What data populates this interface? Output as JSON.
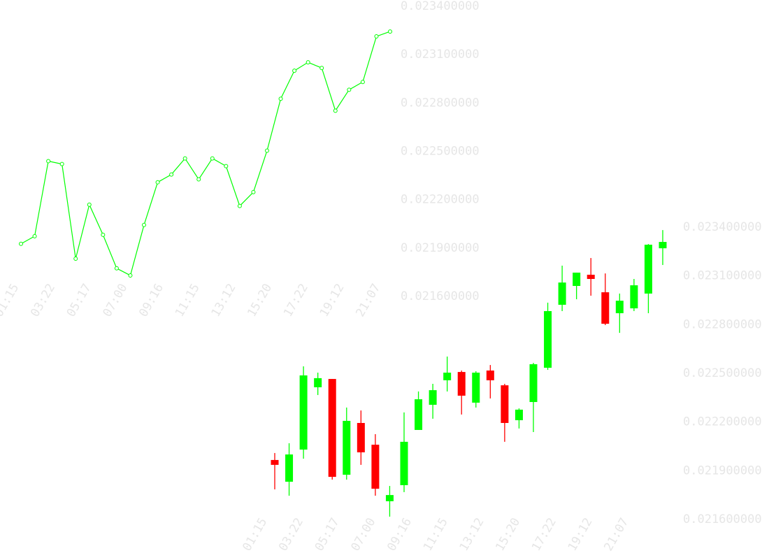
{
  "colors": {
    "line": "#00ff00",
    "up": "#00ff00",
    "down": "#ff0000",
    "labels": "#e6e6e6",
    "background": "#ffffff"
  },
  "chart_data": [
    {
      "type": "line",
      "marker": "circle",
      "ylim": [
        0.0216,
        0.0234
      ],
      "yticks": [
        "0.023400000",
        "0.023100000",
        "0.022800000",
        "0.022500000",
        "0.022200000",
        "0.021900000",
        "0.021600000"
      ],
      "ytick_values": [
        0.0234,
        0.0231,
        0.0228,
        0.0225,
        0.0222,
        0.0219,
        0.0216
      ],
      "xticks": [
        "01:15",
        "03:22",
        "05:17",
        "07:00",
        "09:16",
        "11:15",
        "13:12",
        "15:20",
        "17:22",
        "19:12",
        "21:07"
      ],
      "grid": false,
      "values": [
        0.021922,
        0.021969,
        0.022435,
        0.022417,
        0.02183,
        0.022165,
        0.021978,
        0.02177,
        0.021726,
        0.022039,
        0.022304,
        0.022352,
        0.022452,
        0.022322,
        0.022452,
        0.022404,
        0.022157,
        0.022243,
        0.0225,
        0.022822,
        0.022996,
        0.023048,
        0.023013,
        0.022748,
        0.022878,
        0.022926,
        0.023209,
        0.023239
      ]
    },
    {
      "type": "candlestick",
      "ylim": [
        0.0216,
        0.0234
      ],
      "yticks": [
        "0.023400000",
        "0.023100000",
        "0.022800000",
        "0.022500000",
        "0.022200000",
        "0.021900000",
        "0.021600000"
      ],
      "ytick_values": [
        0.0234,
        0.0231,
        0.0228,
        0.0225,
        0.0222,
        0.0219,
        0.0216
      ],
      "xticks": [
        "01:15",
        "03:22",
        "05:17",
        "07:00",
        "09:16",
        "11:15",
        "13:12",
        "15:20",
        "17:22",
        "19:12",
        "21:07"
      ],
      "grid": false,
      "candles": [
        {
          "o": 0.021962,
          "h": 0.022005,
          "l": 0.021781,
          "c": 0.021932
        },
        {
          "o": 0.021828,
          "h": 0.022065,
          "l": 0.021742,
          "c": 0.021996
        },
        {
          "o": 0.022026,
          "h": 0.022539,
          "l": 0.02197,
          "c": 0.022483
        },
        {
          "o": 0.02241,
          "h": 0.0225,
          "l": 0.022362,
          "c": 0.022466
        },
        {
          "o": 0.022461,
          "h": 0.022461,
          "l": 0.021841,
          "c": 0.021858
        },
        {
          "o": 0.021871,
          "h": 0.022285,
          "l": 0.021841,
          "c": 0.022203
        },
        {
          "o": 0.02219,
          "h": 0.022267,
          "l": 0.021932,
          "c": 0.022009
        },
        {
          "o": 0.022056,
          "h": 0.022121,
          "l": 0.021742,
          "c": 0.021785
        },
        {
          "o": 0.021708,
          "h": 0.021802,
          "l": 0.021613,
          "c": 0.021746
        },
        {
          "o": 0.021807,
          "h": 0.022255,
          "l": 0.021764,
          "c": 0.022074
        },
        {
          "o": 0.022147,
          "h": 0.022384,
          "l": 0.022147,
          "c": 0.022336
        },
        {
          "o": 0.022302,
          "h": 0.022431,
          "l": 0.022216,
          "c": 0.022392
        },
        {
          "o": 0.022453,
          "h": 0.022599,
          "l": 0.022384,
          "c": 0.0225
        },
        {
          "o": 0.022504,
          "h": 0.022513,
          "l": 0.022242,
          "c": 0.022358
        },
        {
          "o": 0.022315,
          "h": 0.022509,
          "l": 0.022285,
          "c": 0.0225
        },
        {
          "o": 0.022513,
          "h": 0.022547,
          "l": 0.022341,
          "c": 0.022453
        },
        {
          "o": 0.022422,
          "h": 0.022431,
          "l": 0.022074,
          "c": 0.02219
        },
        {
          "o": 0.022207,
          "h": 0.02228,
          "l": 0.022156,
          "c": 0.022272
        },
        {
          "o": 0.022319,
          "h": 0.02256,
          "l": 0.022134,
          "c": 0.022552
        },
        {
          "o": 0.02253,
          "h": 0.022931,
          "l": 0.022517,
          "c": 0.022879
        },
        {
          "o": 0.022918,
          "h": 0.023159,
          "l": 0.022879,
          "c": 0.023055
        },
        {
          "o": 0.023034,
          "h": 0.023116,
          "l": 0.022952,
          "c": 0.023116
        },
        {
          "o": 0.023103,
          "h": 0.023206,
          "l": 0.022974,
          "c": 0.023077
        },
        {
          "o": 0.022995,
          "h": 0.023111,
          "l": 0.022793,
          "c": 0.022801
        },
        {
          "o": 0.022866,
          "h": 0.022987,
          "l": 0.022745,
          "c": 0.022943
        },
        {
          "o": 0.022896,
          "h": 0.023077,
          "l": 0.022879,
          "c": 0.023038
        },
        {
          "o": 0.022987,
          "h": 0.023292,
          "l": 0.022866,
          "c": 0.023288
        },
        {
          "o": 0.023266,
          "h": 0.023378,
          "l": 0.023163,
          "c": 0.023305
        }
      ]
    }
  ]
}
